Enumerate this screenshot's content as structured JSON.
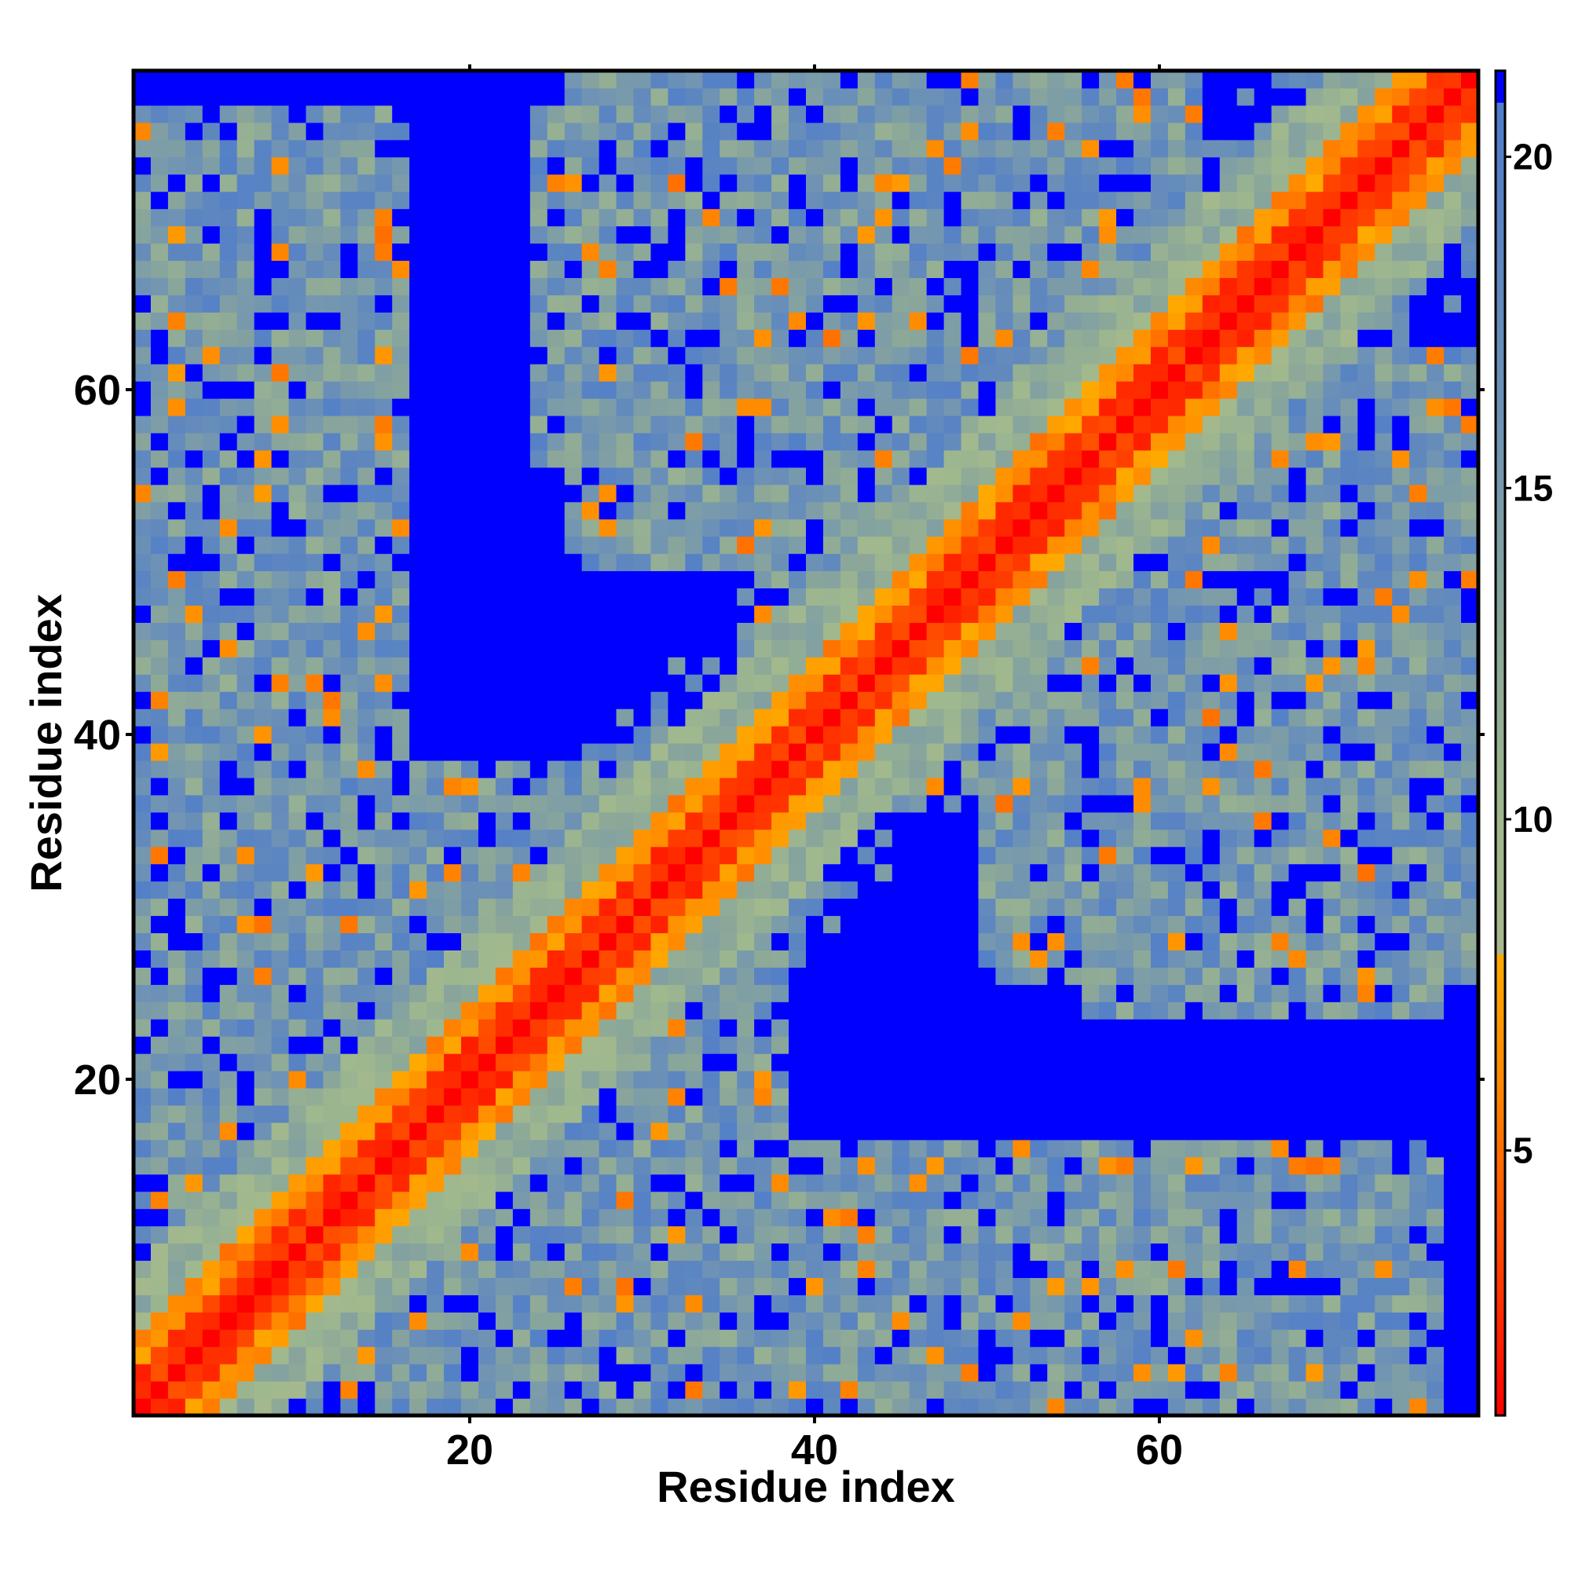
{
  "chart_data": {
    "type": "heatmap",
    "title": "",
    "xlabel": "Residue index",
    "ylabel": "Residue index",
    "n_residues": 78,
    "xlim": [
      0.5,
      78.5
    ],
    "ylim": [
      0.5,
      78.5
    ],
    "x_ticks": [
      20,
      40,
      60
    ],
    "y_ticks": [
      20,
      40,
      60
    ],
    "grid": false,
    "colorbar": {
      "position": "right",
      "ticks": [
        5,
        10,
        15,
        20
      ],
      "range": [
        1,
        21.3
      ],
      "stops": [
        {
          "value": 1.0,
          "color": "#ff0000"
        },
        {
          "value": 4.0,
          "color": "#ff5500"
        },
        {
          "value": 6.0,
          "color": "#ff8800"
        },
        {
          "value": 8.0,
          "color": "#ffaa00"
        },
        {
          "value": 8.001,
          "color": "#a8b88c"
        },
        {
          "value": 10.0,
          "color": "#9fb88e"
        },
        {
          "value": 13.0,
          "color": "#8aa69a"
        },
        {
          "value": 16.0,
          "color": "#6f93b5"
        },
        {
          "value": 19.0,
          "color": "#5a84c2"
        },
        {
          "value": 20.8,
          "color": "#4f7dcc"
        },
        {
          "value": 20.801,
          "color": "#0000ff"
        },
        {
          "value": 21.3,
          "color": "#0000ff"
        }
      ]
    },
    "description_values": "Pairwise residue distance map (symmetric). Near-diagonal distances ~1-8 (red/orange); off-diagonal contacts form wing/contact regions ~8-20 (green-grey-blue); far pairs >20.8 saturate blue.",
    "contact_regions": [
      {
        "i": [
          1,
          16
        ],
        "j": [
          36,
          76
        ],
        "level": 14
      },
      {
        "i": [
          24,
          40
        ],
        "j": [
          56,
          76
        ],
        "level": 14
      },
      {
        "i": [
          36,
          78
        ],
        "j": [
          36,
          62
        ],
        "level": 14
      },
      {
        "i": [
          1,
          36
        ],
        "j": [
          1,
          38
        ],
        "level": 14
      },
      {
        "i": [
          50,
          78
        ],
        "j": [
          26,
          40
        ],
        "level": 14
      },
      {
        "i": [
          50,
          72
        ],
        "j": [
          1,
          14
        ],
        "level": 14
      },
      {
        "i": [
          24,
          36
        ],
        "j": [
          1,
          16
        ],
        "level": 14
      }
    ]
  }
}
